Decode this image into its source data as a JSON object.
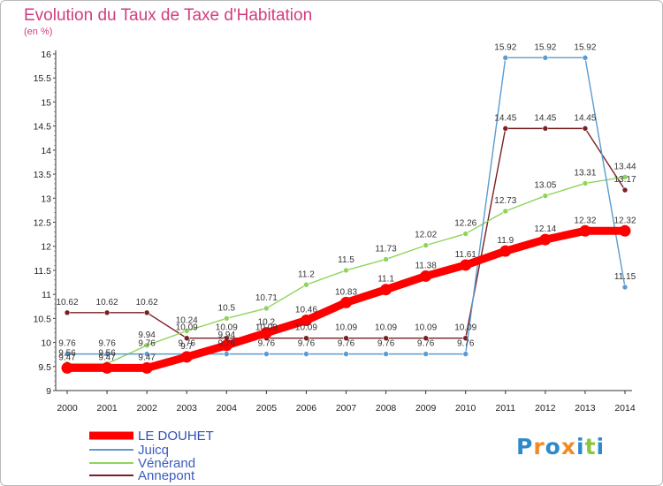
{
  "header": {
    "title": "Evolution du Taux de Taxe d'Habitation",
    "unit": "(en %)"
  },
  "logo": {
    "letters": [
      {
        "char": "P",
        "color": "#2f8ac9"
      },
      {
        "char": "r",
        "color": "#f08a24"
      },
      {
        "char": "o",
        "color": "#2f8ac9"
      },
      {
        "char": "x",
        "color": "#f08a24"
      },
      {
        "char": "i",
        "color": "#2f8ac9"
      },
      {
        "char": "t",
        "color": "#8cc63f"
      },
      {
        "char": "i",
        "color": "#2f8ac9"
      }
    ]
  },
  "chart_data": {
    "type": "line",
    "title": "Evolution du Taux de Taxe d'Habitation",
    "ylabel": "(en %)",
    "xlabel": "",
    "x": [
      "2000",
      "2001",
      "2002",
      "2003",
      "2004",
      "2005",
      "2006",
      "2007",
      "2008",
      "2009",
      "2010",
      "2011",
      "2012",
      "2013",
      "2014"
    ],
    "ylim": [
      9,
      16
    ],
    "yticks": [
      "9",
      "9.5",
      "10",
      "10.5",
      "11",
      "11.5",
      "12",
      "12.5",
      "13",
      "13.5",
      "14",
      "14.5",
      "15",
      "15.5",
      "16"
    ],
    "grid": false,
    "legend_position": "bottom-left",
    "series": [
      {
        "name": "LE DOUHET",
        "color": "#ff0000",
        "values": [
          9.47,
          9.47,
          9.47,
          9.7,
          9.94,
          10.2,
          10.46,
          10.83,
          11.1,
          11.38,
          11.61,
          11.9,
          12.14,
          12.32,
          12.32
        ],
        "labels": [
          "9.47",
          "9.47",
          "9.47",
          "9.7",
          "9.94",
          "10.2",
          "10.46",
          "10.83",
          "11.1",
          "11.38",
          "11.61",
          "11.9",
          "12.14",
          "12.32",
          "12.32"
        ]
      },
      {
        "name": "Juicq",
        "color": "#5b9bd0",
        "values": [
          9.76,
          9.76,
          9.76,
          9.76,
          9.76,
          9.76,
          9.76,
          9.76,
          9.76,
          9.76,
          9.76,
          15.92,
          15.92,
          15.92,
          11.15
        ],
        "labels": [
          "9.76",
          "9.76",
          "9.76",
          "9.76",
          "9.76",
          "9.76",
          "9.76",
          "9.76",
          "9.76",
          "9.76",
          "9.76",
          "15.92",
          "15.92",
          "15.92",
          "11.15"
        ]
      },
      {
        "name": "Vénérand",
        "color": "#8fd45a",
        "values": [
          9.56,
          9.56,
          9.94,
          10.24,
          10.5,
          10.71,
          11.2,
          11.5,
          11.73,
          12.02,
          12.26,
          12.73,
          13.05,
          13.31,
          13.44
        ],
        "labels": [
          "9.56",
          "9.56",
          "9.94",
          "10.24",
          "10.5",
          "10.71",
          "11.2",
          "11.5",
          "11.73",
          "12.02",
          "12.26",
          "12.73",
          "13.05",
          "13.31",
          "13.44"
        ]
      },
      {
        "name": "Annepont",
        "color": "#7a1f22",
        "values": [
          10.62,
          10.62,
          10.62,
          10.09,
          10.09,
          10.09,
          10.09,
          10.09,
          10.09,
          10.09,
          10.09,
          14.45,
          14.45,
          14.45,
          13.17
        ],
        "labels": [
          "10.62",
          "10.62",
          "10.62",
          "10.09",
          "10.09",
          "10.09",
          "10.09",
          "10.09",
          "10.09",
          "10.09",
          "10.09",
          "14.45",
          "14.45",
          "14.45",
          "13.17"
        ]
      }
    ]
  }
}
